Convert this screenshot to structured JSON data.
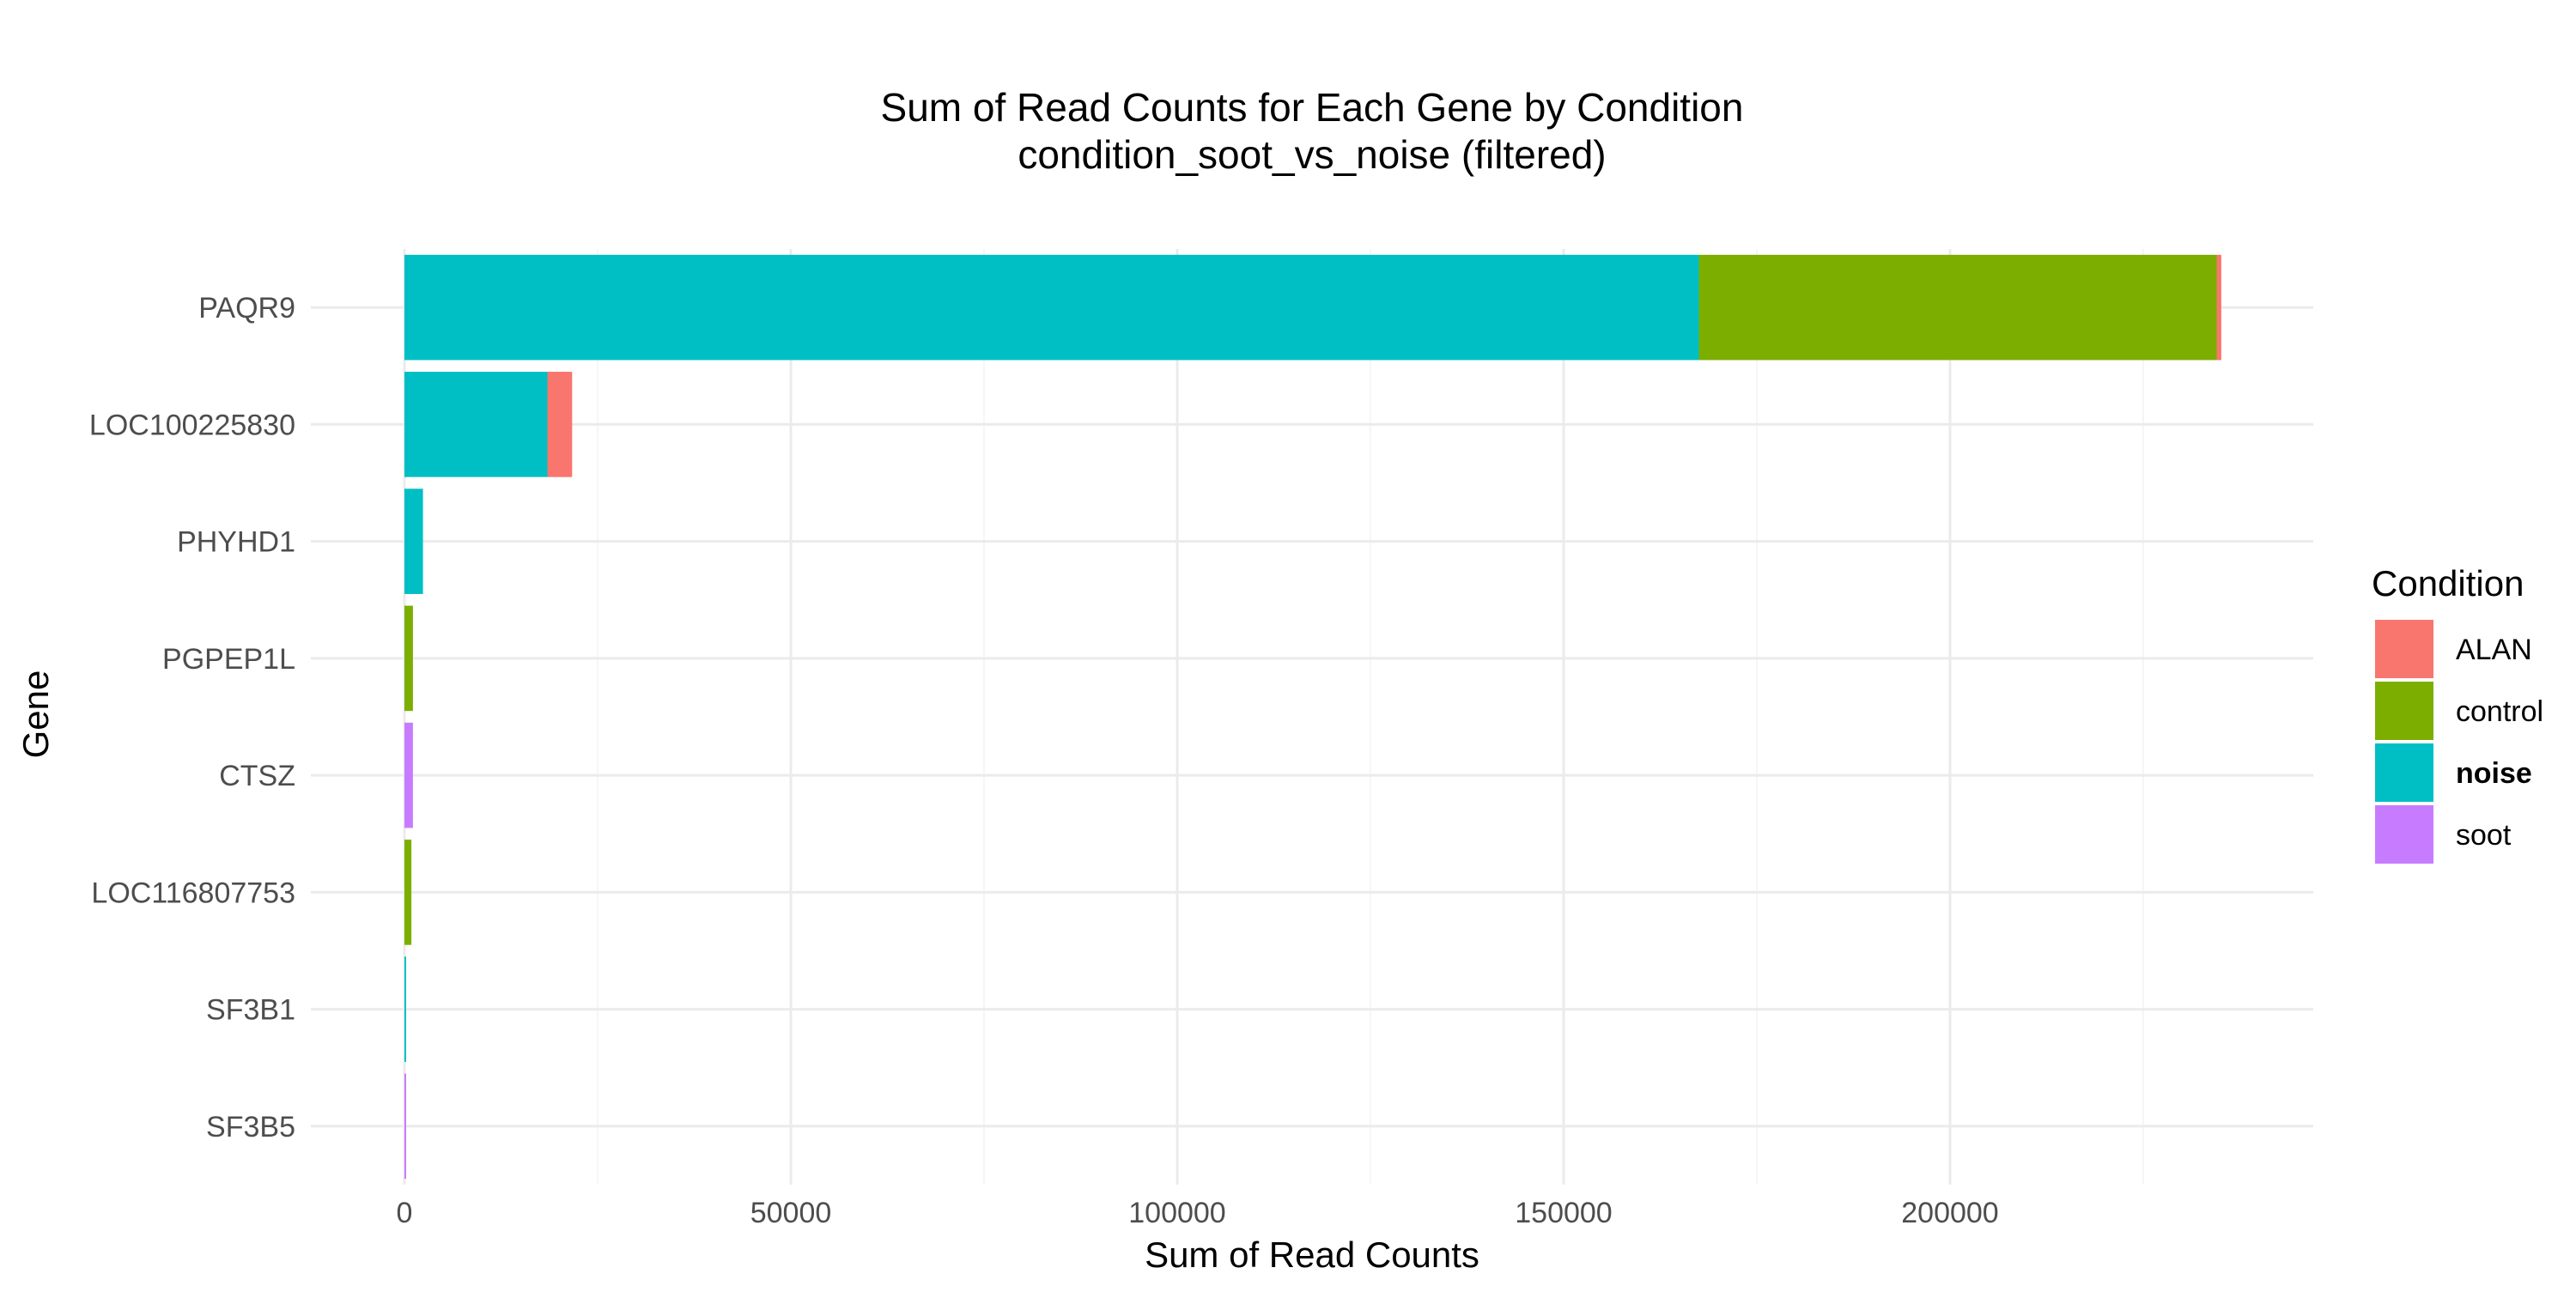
{
  "chart_data": {
    "type": "bar",
    "orientation": "horizontal",
    "stacked": true,
    "title": "Sum of Read Counts for Each Gene by Condition",
    "subtitle": "condition_soot_vs_noise (filtered)",
    "xlabel": "Sum of Read Counts",
    "ylabel": "Gene",
    "xlim": [
      0,
      247000
    ],
    "xticks": [
      0,
      50000,
      100000,
      150000,
      200000
    ],
    "xtick_labels": [
      "0",
      "50000",
      "100000",
      "150000",
      "200000"
    ],
    "grid": true,
    "legend": {
      "title": "Condition",
      "placement": "right",
      "bold_entry": "noise"
    },
    "categories": [
      "PAQR9",
      "LOC100225830",
      "PHYHD1",
      "PGPEP1L",
      "CTSZ",
      "LOC116807753",
      "SF3B1",
      "SF3B5"
    ],
    "series": [
      {
        "name": "ALAN",
        "color": "#F8766D",
        "values": [
          600,
          3200,
          0,
          0,
          0,
          0,
          0,
          0
        ]
      },
      {
        "name": "control",
        "color": "#7CAE00",
        "values": [
          67000,
          0,
          0,
          1100,
          0,
          900,
          0,
          0
        ]
      },
      {
        "name": "noise",
        "color": "#00BFC4",
        "values": [
          167500,
          18500,
          2400,
          0,
          0,
          0,
          150,
          0
        ]
      },
      {
        "name": "soot",
        "color": "#C77CFF",
        "values": [
          0,
          0,
          0,
          0,
          1100,
          0,
          0,
          150
        ]
      }
    ]
  }
}
